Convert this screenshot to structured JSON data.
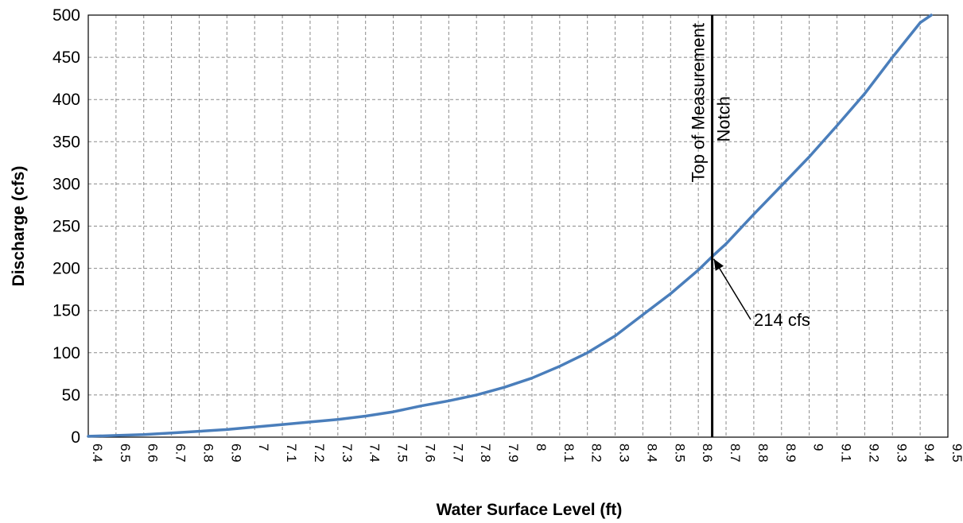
{
  "chart_data": {
    "type": "line",
    "title": "",
    "xlabel": "Water Surface Level (ft)",
    "ylabel": "Discharge (cfs)",
    "xlim": [
      6.4,
      9.5
    ],
    "ylim": [
      0,
      500
    ],
    "x_ticks": [
      "6.4",
      "6.5",
      "6.6",
      "6.7",
      "6.8",
      "6.9",
      "7",
      "7.1",
      "7.2",
      "7.3",
      "7.4",
      "7.5",
      "7.6",
      "7.7",
      "7.8",
      "7.9",
      "8",
      "8.1",
      "8.2",
      "8.3",
      "8.4",
      "8.5",
      "8.6",
      "8.7",
      "8.8",
      "8.9",
      "9",
      "9.1",
      "9.2",
      "9.3",
      "9.4",
      "9.5"
    ],
    "y_ticks": [
      "0",
      "50",
      "100",
      "150",
      "200",
      "250",
      "300",
      "350",
      "400",
      "450",
      "500"
    ],
    "grid": true,
    "series": [
      {
        "color": "#4a7ebb",
        "x": [
          6.4,
          6.5,
          6.6,
          6.7,
          6.8,
          6.9,
          7.0,
          7.1,
          7.2,
          7.3,
          7.4,
          7.5,
          7.6,
          7.7,
          7.8,
          7.9,
          8.0,
          8.1,
          8.2,
          8.3,
          8.4,
          8.5,
          8.6,
          8.65,
          8.7,
          8.8,
          8.9,
          9.0,
          9.1,
          9.2,
          9.3,
          9.4,
          9.44
        ],
        "y": [
          1,
          2,
          3,
          5,
          7,
          9,
          12,
          15,
          18,
          21,
          25,
          30,
          37,
          43,
          50,
          59,
          70,
          84,
          100,
          120,
          145,
          170,
          198,
          214,
          229,
          264,
          298,
          332,
          369,
          407,
          450,
          491,
          500
        ]
      }
    ],
    "annotations": [
      {
        "type": "vline",
        "x": 8.65,
        "label": "Top of Measurement",
        "label2": "Notch"
      },
      {
        "type": "arrow",
        "x": 8.65,
        "y": 214,
        "label": "214 cfs"
      }
    ]
  }
}
